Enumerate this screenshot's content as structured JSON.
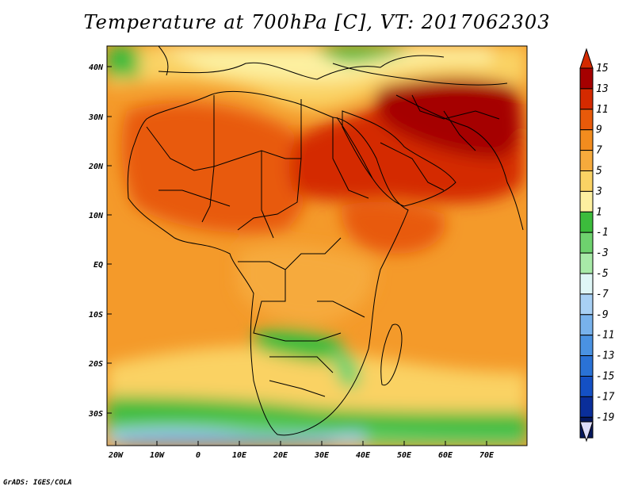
{
  "title": "Temperature at 700hPa [C], VT: 2017062303",
  "credit": "GrADS: IGES/COLA",
  "map": {
    "lat_ticks": [
      "40N",
      "30N",
      "20N",
      "10N",
      "EQ",
      "10S",
      "20S",
      "30S"
    ],
    "lon_ticks": [
      "20W",
      "10W",
      "0",
      "10E",
      "20E",
      "30E",
      "40E",
      "50E",
      "60E",
      "70E"
    ]
  },
  "colorbar": {
    "labels": [
      "15",
      "13",
      "11",
      "9",
      "7",
      "5",
      "3",
      "1",
      "-1",
      "-3",
      "-5",
      "-7",
      "-9",
      "-11",
      "-13",
      "-15",
      "-17",
      "-19"
    ],
    "colors": [
      "#a50000",
      "#d42a00",
      "#e85a0a",
      "#f28c1e",
      "#f6aa3c",
      "#fad264",
      "#fdf0a0",
      "#3cbc3c",
      "#6ed26e",
      "#a8eaa8",
      "#dff6f6",
      "#a8d0f4",
      "#78b2ec",
      "#4a92e2",
      "#2a72d6",
      "#1450c4",
      "#0a2e9a",
      "#06185e"
    ],
    "over_color": "#d42a00",
    "under_color": "#dcdcf8"
  }
}
